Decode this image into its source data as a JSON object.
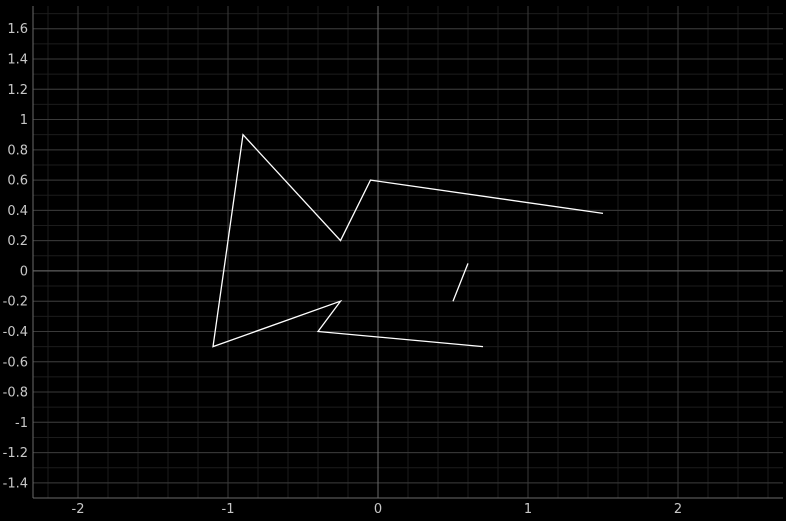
{
  "chart_data": {
    "type": "line",
    "title": "",
    "xlabel": "",
    "ylabel": "",
    "xlim": [
      -2.3,
      2.7
    ],
    "ylim": [
      -1.5,
      1.75
    ],
    "grid": true,
    "x_ticks": [
      {
        "value": -2,
        "label": "-2"
      },
      {
        "value": -1,
        "label": "-1"
      },
      {
        "value": 0,
        "label": "0"
      },
      {
        "value": 1,
        "label": "1"
      },
      {
        "value": 2,
        "label": "2"
      }
    ],
    "y_ticks": [
      {
        "value": 1.6,
        "label": "1.6"
      },
      {
        "value": 1.4,
        "label": "1.4"
      },
      {
        "value": 1.2,
        "label": "1.2"
      },
      {
        "value": 1,
        "label": "1"
      },
      {
        "value": 0.8,
        "label": "0.8"
      },
      {
        "value": 0.6,
        "label": "0.6"
      },
      {
        "value": 0.4,
        "label": "0.4"
      },
      {
        "value": 0.2,
        "label": "0.2"
      },
      {
        "value": 0,
        "label": "0"
      },
      {
        "value": -0.2,
        "label": "-0.2"
      },
      {
        "value": -0.4,
        "label": "-0.4"
      },
      {
        "value": -0.6,
        "label": "-0.6"
      },
      {
        "value": -0.8,
        "label": "-0.8"
      },
      {
        "value": -1,
        "label": "-1"
      },
      {
        "value": -1.2,
        "label": "-1.2"
      },
      {
        "value": -1.4,
        "label": "-1.4"
      }
    ],
    "series": [
      {
        "points": [
          [
            1.5,
            0.38
          ],
          [
            -0.05,
            0.6
          ],
          [
            -0.25,
            0.2
          ],
          [
            -0.9,
            0.9
          ],
          [
            -1.1,
            -0.5
          ],
          [
            -0.25,
            -0.2
          ],
          [
            -0.4,
            -0.4
          ],
          [
            0.7,
            -0.5
          ]
        ]
      },
      {
        "points": [
          [
            0.5,
            -0.2
          ],
          [
            0.6,
            0.05
          ]
        ]
      }
    ],
    "colors": {
      "background": "#000000",
      "grid_minor": "#1c1c1c",
      "grid_major": "#3a3a3a",
      "axis": "#6a6a6a",
      "line": "#ffffff",
      "label": "#c8c8c8"
    }
  }
}
